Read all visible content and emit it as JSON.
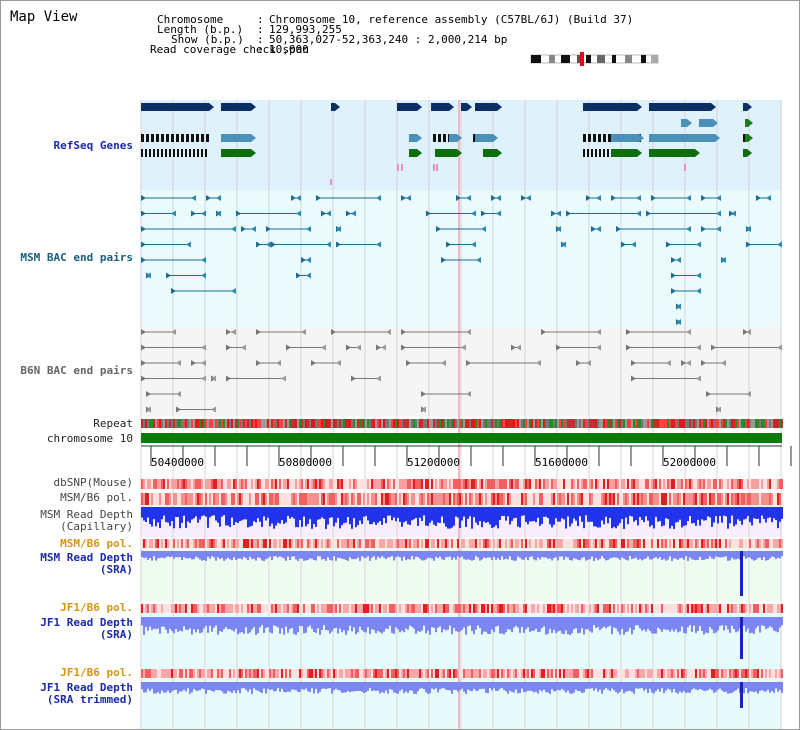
{
  "title": "Map View",
  "header": {
    "chromosome_key": "Chromosome",
    "chromosome_val": "Chromosome 10, reference assembly (C57BL/6J) (Build 37)",
    "length_key": "Length (b.p.)",
    "length_val": "129,993,255",
    "show_key": "Show (b.p.)",
    "show_val": "50,363,027-52,363,240 : 2,000,214 bp",
    "coverage_key": "Read coverage check span",
    "coverage_val": "10,000"
  },
  "tracks": {
    "refseq": "RefSeq Genes",
    "msm_bac": "MSM BAC end pairs",
    "b6n_bac": "B6N BAC end pairs",
    "repeat": "Repeat",
    "chromosome": "chromosome 10",
    "dbsnp": "dbSNP(Mouse)",
    "msm_pol": "MSM/B6 pol.",
    "msm_depth_cap_1": "MSM Read Depth",
    "msm_depth_cap_2": "(Capillary)",
    "msm_pol_sra": "MSM/B6 pol.",
    "msm_depth_sra_1": "MSM Read Depth",
    "msm_depth_sra_2": "(SRA)",
    "jf1_pol_1": "JF1/B6 pol.",
    "jf1_depth_1": "JF1 Read Depth",
    "jf1_depth_1b": "(SRA)",
    "jf1_pol_2": "JF1/B6 pol.",
    "jf1_depth_2": "JF1 Read Depth",
    "jf1_depth_2b": "(SRA trimmed)"
  },
  "axis_ticks": [
    "50400000",
    "50800000",
    "51200000",
    "51600000",
    "52000000"
  ],
  "colors": {
    "refseq_bg": "#dff1fb",
    "msm_bac_bg": "#ebfafc",
    "b6n_bac_bg": "#f5f5f5",
    "chromosome_bar": "#0a7a0a",
    "depth_blue": "#2233ee",
    "depth_light": "#7c86f2",
    "lavender_bg": "#f8eefb",
    "mint_bg": "#effbf1",
    "cyan_bg": "#e7fbfb"
  }
}
